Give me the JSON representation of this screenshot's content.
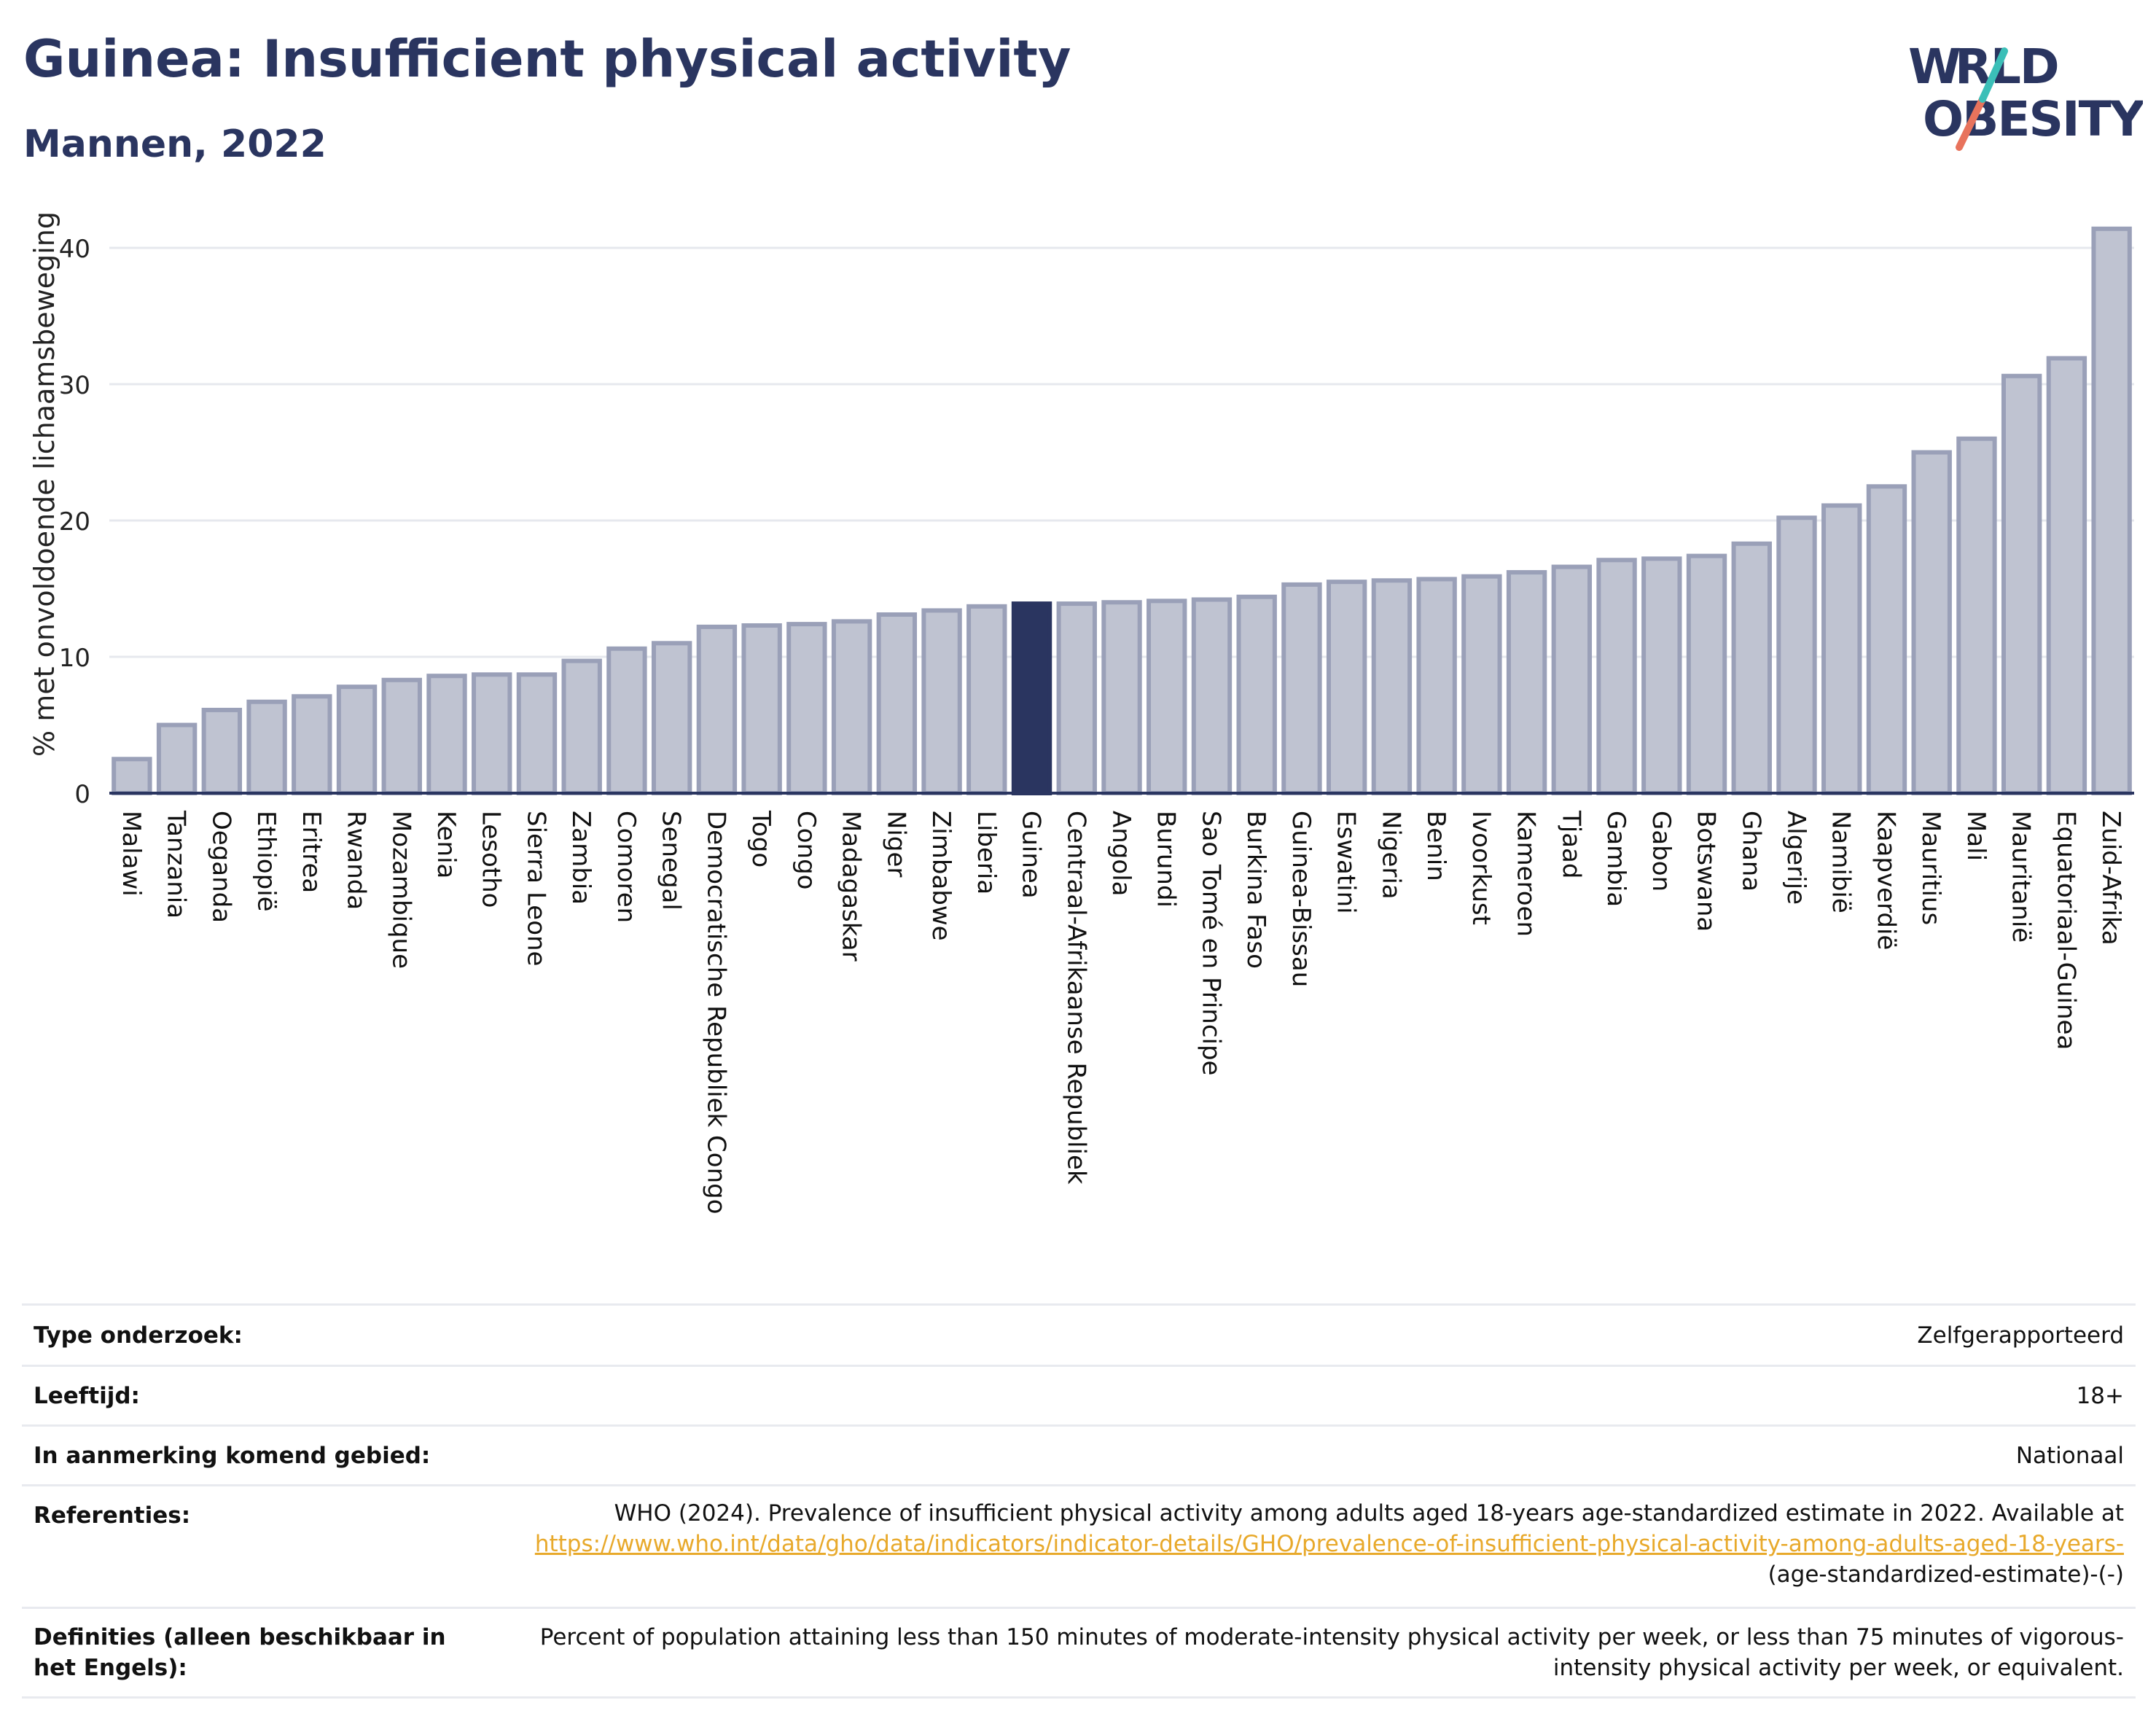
{
  "title": "Guinea: Insufficient physical activity",
  "subtitle": "Mannen, 2022",
  "logo": {
    "line1": "WORLD",
    "line2": "OBESITY",
    "colors": [
      "#2a3560",
      "#e8735c",
      "#3bbfb8"
    ]
  },
  "colors": {
    "bar": "#bfc3d1",
    "bar_stroke": "#9aa0b8",
    "highlight": "#2a3560",
    "axis": "#2a3560",
    "grid": "#e6e8ee"
  },
  "chart_data": {
    "type": "bar",
    "title": "Guinea: Insufficient physical activity",
    "subtitle": "Mannen, 2022",
    "xlabel": "",
    "ylabel": "% met onvoldoende lichaamsbeweging",
    "ylim": [
      0,
      42
    ],
    "yticks": [
      0,
      10,
      20,
      30,
      40
    ],
    "grid": true,
    "highlight": "Guinea",
    "categories": [
      "Malawi",
      "Tanzania",
      "Oeganda",
      "Ethiopië",
      "Eritrea",
      "Rwanda",
      "Mozambique",
      "Kenia",
      "Lesotho",
      "Sierra Leone",
      "Zambia",
      "Comoren",
      "Senegal",
      "Democratische Republiek Congo",
      "Togo",
      "Congo",
      "Madagaskar",
      "Niger",
      "Zimbabwe",
      "Liberia",
      "Guinea",
      "Centraal-Afrikaanse Republiek",
      "Angola",
      "Burundi",
      "Sao Tomé en Principe",
      "Burkina Faso",
      "Guinea-Bissau",
      "Eswatini",
      "Nigeria",
      "Benin",
      "Ivoorkust",
      "Kameroen",
      "Tjaad",
      "Gambia",
      "Gabon",
      "Botswana",
      "Ghana",
      "Algerije",
      "Namibië",
      "Kaapverdië",
      "Mauritius",
      "Mali",
      "Mauritanië",
      "Equatoriaal-Guinea",
      "Zuid-Afrika"
    ],
    "values": [
      2.5,
      5.0,
      6.1,
      6.7,
      7.1,
      7.8,
      8.3,
      8.6,
      8.7,
      8.7,
      9.7,
      10.6,
      11.0,
      12.2,
      12.3,
      12.4,
      12.6,
      13.1,
      13.4,
      13.7,
      13.9,
      13.9,
      14.0,
      14.1,
      14.2,
      14.4,
      15.3,
      15.5,
      15.6,
      15.7,
      15.9,
      16.2,
      16.6,
      17.1,
      17.2,
      17.4,
      18.3,
      20.2,
      21.1,
      22.5,
      25.0,
      26.0,
      30.6,
      31.9,
      41.4
    ]
  },
  "meta": [
    {
      "key": "Type onderzoek:",
      "value": "Zelfgerapporteerd"
    },
    {
      "key": "Leeftijd:",
      "value": "18+"
    },
    {
      "key": "In aanmerking komend gebied:",
      "value": "Nationaal"
    },
    {
      "key": "Referenties:",
      "value_pre": "WHO (2024). Prevalence of insufficient physical activity among adults aged 18-years age-standardized estimate in 2022. Available at",
      "link": "https://www.who.int/data/gho/data/indicators/indicator-details/GHO/prevalence-of-insufficient-physical-activity-among-adults-aged-18-years-",
      "value_post": "(age-standardized-estimate)-(-)"
    },
    {
      "key": "Definities (alleen beschikbaar in het Engels):",
      "value": "Percent of population attaining less than 150 minutes of moderate-intensity physical activity per week, or less than 75 minutes of vigorous-intensity physical activity per week, or equivalent."
    }
  ]
}
